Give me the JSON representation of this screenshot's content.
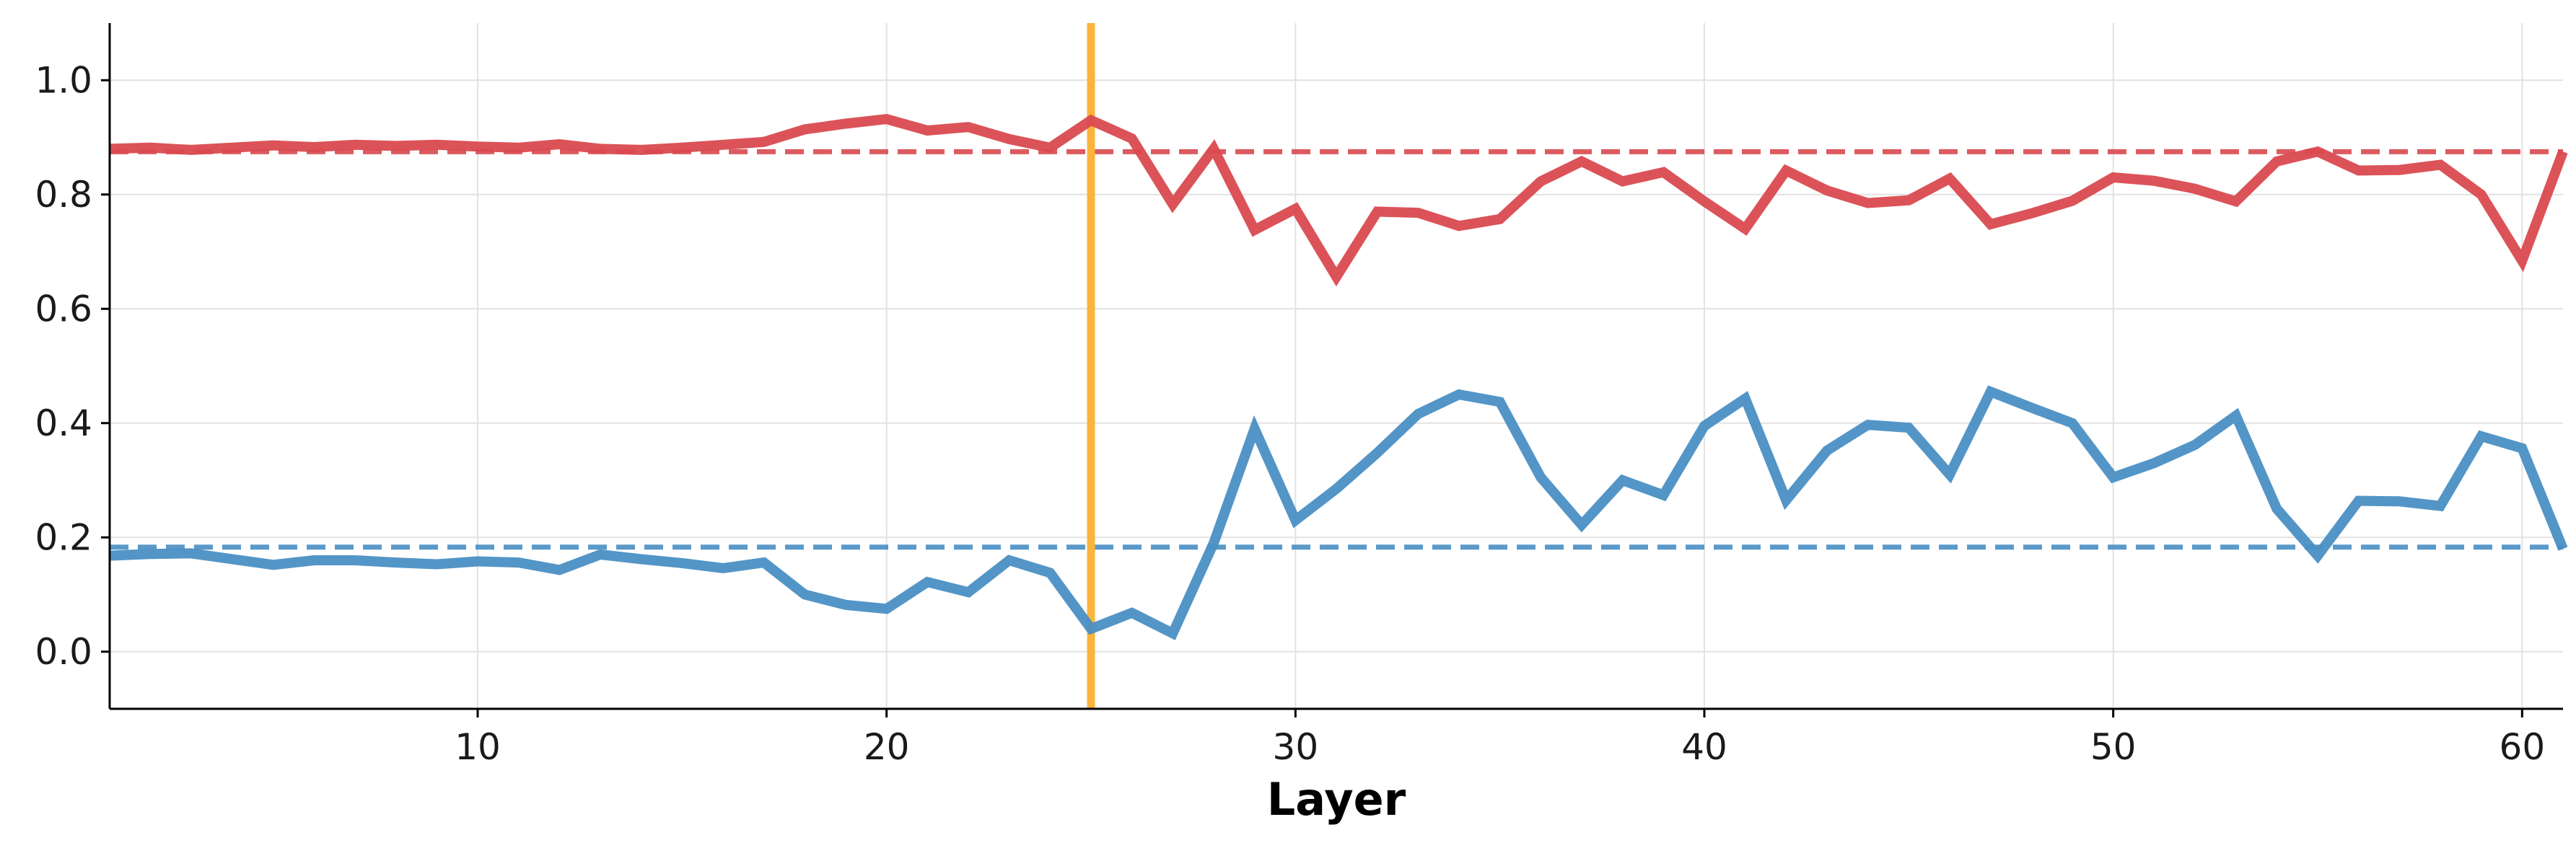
{
  "chart_data": {
    "type": "line",
    "xlabel": "Layer",
    "ylabel": "",
    "xlim": [
      1,
      61
    ],
    "ylim": [
      -0.1,
      1.1
    ],
    "xticks": [
      10,
      20,
      30,
      40,
      50,
      60
    ],
    "yticks": [
      0.0,
      0.2,
      0.4,
      0.6,
      0.8,
      1.0
    ],
    "grid": true,
    "colors": {
      "red": "#d94a4f",
      "blue": "#4a8fc4",
      "marker": "#fbb43b"
    },
    "x": [
      1,
      2,
      3,
      4,
      5,
      6,
      7,
      8,
      9,
      10,
      11,
      12,
      13,
      14,
      15,
      16,
      17,
      18,
      19,
      20,
      21,
      22,
      23,
      24,
      25,
      26,
      27,
      28,
      29,
      30,
      31,
      32,
      33,
      34,
      35,
      36,
      37,
      38,
      39,
      40,
      41,
      42,
      43,
      44,
      45,
      46,
      47,
      48,
      49,
      50,
      51,
      52,
      53,
      54,
      55,
      56,
      57,
      58,
      59,
      60,
      61
    ],
    "series": [
      {
        "color": "red",
        "values": [
          0.88,
          0.882,
          0.878,
          0.882,
          0.886,
          0.883,
          0.887,
          0.885,
          0.887,
          0.884,
          0.882,
          0.888,
          0.88,
          0.878,
          0.882,
          0.887,
          0.892,
          0.914,
          0.924,
          0.932,
          0.912,
          0.918,
          0.897,
          0.882,
          0.93,
          0.898,
          0.783,
          0.88,
          0.738,
          0.775,
          0.656,
          0.77,
          0.768,
          0.745,
          0.757,
          0.823,
          0.858,
          0.823,
          0.839,
          0.788,
          0.74,
          0.842,
          0.807,
          0.785,
          0.79,
          0.828,
          0.748,
          0.767,
          0.789,
          0.83,
          0.824,
          0.81,
          0.788,
          0.858,
          0.875,
          0.842,
          0.843,
          0.852,
          0.8,
          0.684,
          0.875
        ],
        "baseline": 0.875
      },
      {
        "color": "blue",
        "values": [
          0.168,
          0.171,
          0.172,
          0.162,
          0.152,
          0.16,
          0.16,
          0.156,
          0.153,
          0.158,
          0.156,
          0.143,
          0.17,
          0.162,
          0.155,
          0.146,
          0.156,
          0.1,
          0.082,
          0.075,
          0.122,
          0.104,
          0.16,
          0.138,
          0.04,
          0.068,
          0.032,
          0.19,
          0.39,
          0.23,
          0.285,
          0.348,
          0.416,
          0.45,
          0.437,
          0.305,
          0.222,
          0.3,
          0.274,
          0.395,
          0.443,
          0.265,
          0.352,
          0.397,
          0.392,
          0.31,
          0.455,
          0.427,
          0.4,
          0.305,
          0.33,
          0.362,
          0.413,
          0.25,
          0.168,
          0.264,
          0.263,
          0.255,
          0.377,
          0.356,
          0.18
        ],
        "baseline": 0.183
      }
    ],
    "vline_x": 25
  }
}
